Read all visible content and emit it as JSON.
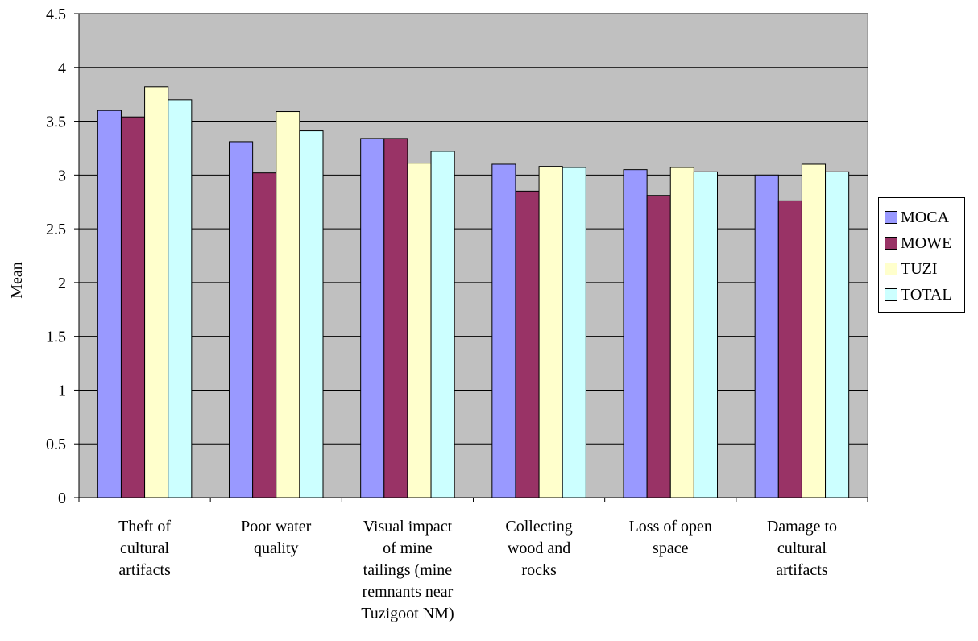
{
  "chart_data": {
    "type": "bar",
    "title": "",
    "xlabel": "",
    "ylabel": "Mean",
    "ylim": [
      0,
      4.5
    ],
    "yticks": [
      "0",
      "0.5",
      "1",
      "1.5",
      "2",
      "2.5",
      "3",
      "3.5",
      "4",
      "4.5"
    ],
    "grid": true,
    "legend_position": "right",
    "plot_background": "#C0C0C0",
    "categories": [
      "Theft of cultural artifacts",
      "Poor water quality",
      "Visual impact of mine tailings (mine remnants near Tuzigoot NM)",
      "Collecting wood and rocks",
      "Loss of open space",
      "Damage to cultural artifacts"
    ],
    "category_label_lines": [
      [
        "Theft of",
        "cultural",
        "artifacts"
      ],
      [
        "Poor water",
        "quality"
      ],
      [
        "Visual impact",
        "of mine",
        "tailings (mine",
        "remnants near",
        "Tuzigoot NM)"
      ],
      [
        "Collecting",
        "wood and",
        "rocks"
      ],
      [
        "Loss of open",
        "space"
      ],
      [
        "Damage to",
        "cultural",
        "artifacts"
      ]
    ],
    "series": [
      {
        "name": "MOCA",
        "color": "#9999FF",
        "values": [
          3.6,
          3.31,
          3.34,
          3.1,
          3.05,
          3.0
        ]
      },
      {
        "name": "MOWE",
        "color": "#993366",
        "values": [
          3.54,
          3.02,
          3.34,
          2.85,
          2.81,
          2.76
        ]
      },
      {
        "name": "TUZI",
        "color": "#FFFFCC",
        "values": [
          3.82,
          3.59,
          3.11,
          3.08,
          3.07,
          3.1
        ]
      },
      {
        "name": "TOTAL",
        "color": "#CCFFFF",
        "values": [
          3.7,
          3.41,
          3.22,
          3.07,
          3.03,
          3.03
        ]
      }
    ]
  }
}
